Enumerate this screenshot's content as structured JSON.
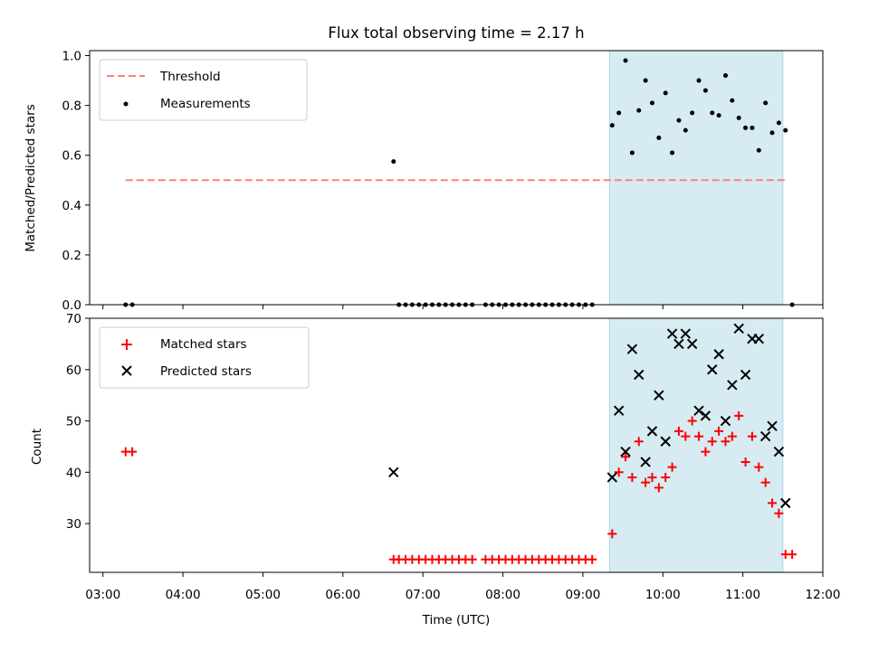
{
  "chart_data": [
    {
      "type": "scatter",
      "title": "Flux total observing time = 2.17 h",
      "xlabel": "",
      "ylabel": "Matched/Predicted stars",
      "xlim": [
        "02:50",
        "12:00"
      ],
      "ylim": [
        0,
        1.02
      ],
      "yticks": [
        "0.0",
        "0.2",
        "0.4",
        "0.6",
        "0.8",
        "1.0"
      ],
      "threshold": {
        "name": "Threshold",
        "value": 0.5,
        "x_range": [
          "03:17",
          "11:32"
        ],
        "color": "#ff7f7f"
      },
      "shaded_region": {
        "x_range": [
          "09:20",
          "11:30"
        ],
        "color": "#add8e6"
      },
      "legend": {
        "placement": "upper-left",
        "entries": [
          "Threshold",
          "Measurements"
        ]
      },
      "series": [
        {
          "name": "Measurements",
          "marker": "dot",
          "color": "#000000",
          "x": [
            "03:17",
            "03:22",
            "06:38",
            "06:42",
            "06:47",
            "06:52",
            "06:57",
            "07:02",
            "07:07",
            "07:12",
            "07:17",
            "07:22",
            "07:27",
            "07:32",
            "07:37",
            "07:47",
            "07:52",
            "07:57",
            "08:02",
            "08:07",
            "08:12",
            "08:17",
            "08:22",
            "08:27",
            "08:32",
            "08:37",
            "08:42",
            "08:47",
            "08:52",
            "08:57",
            "09:02",
            "09:07",
            "09:22",
            "09:27",
            "09:32",
            "09:37",
            "09:42",
            "09:47",
            "09:52",
            "09:57",
            "10:02",
            "10:07",
            "10:12",
            "10:17",
            "10:22",
            "10:27",
            "10:32",
            "10:37",
            "10:42",
            "10:47",
            "10:52",
            "10:57",
            "11:02",
            "11:07",
            "11:12",
            "11:17",
            "11:22",
            "11:27",
            "11:32",
            "11:37"
          ],
          "y": [
            0,
            0,
            0.575,
            0,
            0,
            0,
            0,
            0,
            0,
            0,
            0,
            0,
            0,
            0,
            0,
            0,
            0,
            0,
            0,
            0,
            0,
            0,
            0,
            0,
            0,
            0,
            0,
            0,
            0,
            0,
            0,
            0,
            0.72,
            0.77,
            0.98,
            0.61,
            0.78,
            0.9,
            0.81,
            0.67,
            0.85,
            0.61,
            0.74,
            0.7,
            0.77,
            0.9,
            0.86,
            0.77,
            0.76,
            0.92,
            0.82,
            0.75,
            0.71,
            0.71,
            0.62,
            0.81,
            0.69,
            0.73,
            0.7,
            0
          ]
        }
      ]
    },
    {
      "type": "scatter",
      "title": "",
      "xlabel": "Time (UTC)",
      "ylabel": "Count",
      "xlim": [
        "02:50",
        "12:00"
      ],
      "ylim": [
        20.5,
        70
      ],
      "yticks": [
        "30",
        "40",
        "50",
        "60",
        "70"
      ],
      "xticks": [
        "03:00",
        "04:00",
        "05:00",
        "06:00",
        "07:00",
        "08:00",
        "09:00",
        "10:00",
        "11:00",
        "12:00"
      ],
      "shaded_region": {
        "x_range": [
          "09:20",
          "11:30"
        ],
        "color": "#add8e6"
      },
      "legend": {
        "placement": "upper-left",
        "entries": [
          "Matched stars",
          "Predicted stars"
        ]
      },
      "series": [
        {
          "name": "Matched stars",
          "marker": "plus",
          "color": "#ff0000",
          "x": [
            "03:17",
            "03:22",
            "06:38",
            "06:42",
            "06:47",
            "06:52",
            "06:57",
            "07:02",
            "07:07",
            "07:12",
            "07:17",
            "07:22",
            "07:27",
            "07:32",
            "07:37",
            "07:47",
            "07:52",
            "07:57",
            "08:02",
            "08:07",
            "08:12",
            "08:17",
            "08:22",
            "08:27",
            "08:32",
            "08:37",
            "08:42",
            "08:47",
            "08:52",
            "08:57",
            "09:02",
            "09:07",
            "09:22",
            "09:27",
            "09:32",
            "09:37",
            "09:42",
            "09:47",
            "09:52",
            "09:57",
            "10:02",
            "10:07",
            "10:12",
            "10:17",
            "10:22",
            "10:27",
            "10:32",
            "10:37",
            "10:42",
            "10:47",
            "10:52",
            "10:57",
            "11:02",
            "11:07",
            "11:12",
            "11:17",
            "11:22",
            "11:27",
            "11:32",
            "11:37"
          ],
          "y": [
            44,
            44,
            23,
            23,
            23,
            23,
            23,
            23,
            23,
            23,
            23,
            23,
            23,
            23,
            23,
            23,
            23,
            23,
            23,
            23,
            23,
            23,
            23,
            23,
            23,
            23,
            23,
            23,
            23,
            23,
            23,
            23,
            28,
            40,
            43,
            39,
            46,
            38,
            39,
            37,
            39,
            41,
            48,
            47,
            50,
            47,
            44,
            46,
            48,
            46,
            47,
            51,
            42,
            47,
            41,
            38,
            34,
            32,
            24,
            24
          ]
        },
        {
          "name": "Predicted stars",
          "marker": "x",
          "color": "#000000",
          "x": [
            "06:38",
            "09:22",
            "09:27",
            "09:32",
            "09:37",
            "09:42",
            "09:47",
            "09:52",
            "09:57",
            "10:02",
            "10:07",
            "10:12",
            "10:17",
            "10:22",
            "10:27",
            "10:32",
            "10:37",
            "10:42",
            "10:47",
            "10:52",
            "10:57",
            "11:02",
            "11:07",
            "11:12",
            "11:17",
            "11:22",
            "11:27",
            "11:32"
          ],
          "y": [
            40,
            39,
            52,
            44,
            64,
            59,
            42,
            48,
            55,
            46,
            67,
            65,
            67,
            65,
            52,
            51,
            60,
            63,
            50,
            57,
            68,
            59,
            66,
            66,
            47,
            49,
            44,
            34
          ]
        }
      ]
    }
  ]
}
